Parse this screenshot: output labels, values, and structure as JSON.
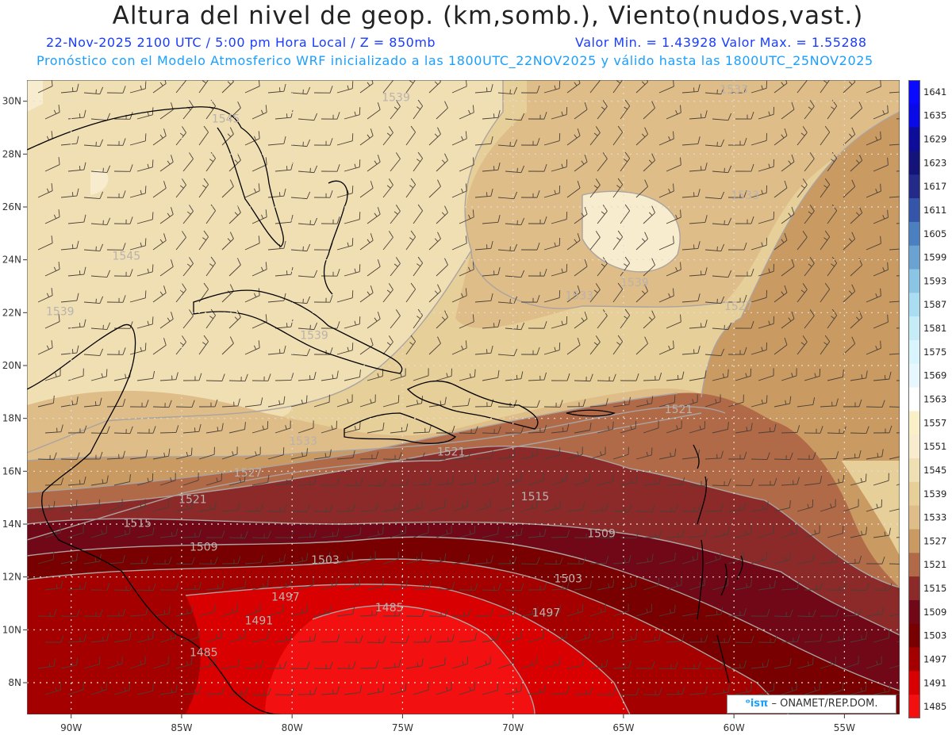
{
  "header": {
    "title": "Altura del nivel de geop. (km,somb.), Viento(nudos,vast.)",
    "subtitle_time": "22-Nov-2025  2100 UTC / 5:00 pm Hora Local / Z = 850mb",
    "subtitle_minmax": "Valor Min. = 1.43928  Valor Max. = 1.55288",
    "subtitle_model": "Pronóstico con el Modelo Atmosferico WRF inicializado a las 1800UTC_22NOV2025 y válido hasta las  1800UTC_25NOV2025"
  },
  "credit": {
    "logo": "ᵒisπ",
    "text": " – ONAMET/REP.DOM."
  },
  "map": {
    "lon_range": [
      -92,
      -52.5
    ],
    "lat_range": [
      6.8,
      30.8
    ],
    "lat_ticks": [
      {
        "value": 30,
        "label": "30N"
      },
      {
        "value": 28,
        "label": "28N"
      },
      {
        "value": 26,
        "label": "26N"
      },
      {
        "value": 24,
        "label": "24N"
      },
      {
        "value": 22,
        "label": "22N"
      },
      {
        "value": 20,
        "label": "20N"
      },
      {
        "value": 18,
        "label": "18N"
      },
      {
        "value": 16,
        "label": "16N"
      },
      {
        "value": 14,
        "label": "14N"
      },
      {
        "value": 12,
        "label": "12N"
      },
      {
        "value": 10,
        "label": "10N"
      },
      {
        "value": 8,
        "label": "8N"
      }
    ],
    "lon_ticks": [
      {
        "value": -90,
        "label": "90W"
      },
      {
        "value": -85,
        "label": "85W"
      },
      {
        "value": -80,
        "label": "80W"
      },
      {
        "value": -75,
        "label": "75W"
      },
      {
        "value": -70,
        "label": "70W"
      },
      {
        "value": -65,
        "label": "65W"
      },
      {
        "value": -60,
        "label": "60W"
      },
      {
        "value": -55,
        "label": "55W"
      }
    ],
    "contour_labels": [
      {
        "text": "1539",
        "lon": -75.3,
        "lat": 30.0
      },
      {
        "text": "1545",
        "lon": -83.0,
        "lat": 29.2
      },
      {
        "text": "1533",
        "lon": -60.0,
        "lat": 30.3
      },
      {
        "text": "1545",
        "lon": -87.5,
        "lat": 24.0
      },
      {
        "text": "1533",
        "lon": -59.5,
        "lat": 26.3
      },
      {
        "text": "1539",
        "lon": -64.5,
        "lat": 23.0
      },
      {
        "text": "1527",
        "lon": -59.8,
        "lat": 22.1
      },
      {
        "text": "1539",
        "lon": -90.5,
        "lat": 21.9
      },
      {
        "text": "1533",
        "lon": -67.0,
        "lat": 22.5
      },
      {
        "text": "1539",
        "lon": -79.0,
        "lat": 21.0
      },
      {
        "text": "1521",
        "lon": -62.5,
        "lat": 18.2
      },
      {
        "text": "1533",
        "lon": -79.5,
        "lat": 17.0
      },
      {
        "text": "1521",
        "lon": -72.8,
        "lat": 16.6
      },
      {
        "text": "1527",
        "lon": -82.0,
        "lat": 15.8
      },
      {
        "text": "1521",
        "lon": -84.5,
        "lat": 14.8
      },
      {
        "text": "1515",
        "lon": -69.0,
        "lat": 14.9
      },
      {
        "text": "1515",
        "lon": -87.0,
        "lat": 13.9
      },
      {
        "text": "1509",
        "lon": -84.0,
        "lat": 13.0
      },
      {
        "text": "1509",
        "lon": -66.0,
        "lat": 13.5
      },
      {
        "text": "1503",
        "lon": -78.5,
        "lat": 12.5
      },
      {
        "text": "1503",
        "lon": -67.5,
        "lat": 11.8
      },
      {
        "text": "1497",
        "lon": -80.3,
        "lat": 11.1
      },
      {
        "text": "1485",
        "lon": -75.6,
        "lat": 10.7
      },
      {
        "text": "1497",
        "lon": -68.5,
        "lat": 10.5
      },
      {
        "text": "1491",
        "lon": -81.5,
        "lat": 10.2
      },
      {
        "text": "1485",
        "lon": -84.0,
        "lat": 9.0
      }
    ]
  },
  "colorbar": {
    "levels": [
      {
        "label": "1641",
        "color": "#0a0aff"
      },
      {
        "label": "1635",
        "color": "#0a0ae6"
      },
      {
        "label": "1629",
        "color": "#0d0d9a"
      },
      {
        "label": "1623",
        "color": "#13137a"
      },
      {
        "label": "1617",
        "color": "#232a8a"
      },
      {
        "label": "1611",
        "color": "#3555a8"
      },
      {
        "label": "1605",
        "color": "#4a7fc0"
      },
      {
        "label": "1599",
        "color": "#6aa2d2"
      },
      {
        "label": "1593",
        "color": "#8cc4e6"
      },
      {
        "label": "1587",
        "color": "#aadcf2"
      },
      {
        "label": "1581",
        "color": "#c6ecf8"
      },
      {
        "label": "1575",
        "color": "#d8f4fc"
      },
      {
        "label": "1569",
        "color": "#e6f8fe"
      },
      {
        "label": "1563",
        "color": "#ffffff"
      },
      {
        "label": "1557",
        "color": "#faf0c8"
      },
      {
        "label": "1551",
        "color": "#f8ecce"
      },
      {
        "label": "1545",
        "color": "#f0dfb3"
      },
      {
        "label": "1539",
        "color": "#e6cf98"
      },
      {
        "label": "1533",
        "color": "#dfbd88"
      },
      {
        "label": "1527",
        "color": "#c99a62"
      },
      {
        "label": "1521",
        "color": "#b06a48"
      },
      {
        "label": "1515",
        "color": "#8c2a2a"
      },
      {
        "label": "1509",
        "color": "#700818"
      },
      {
        "label": "1503",
        "color": "#780000"
      },
      {
        "label": "1497",
        "color": "#a50000"
      },
      {
        "label": "1491",
        "color": "#d80000"
      },
      {
        "label": "1485",
        "color": "#f21010"
      }
    ]
  }
}
